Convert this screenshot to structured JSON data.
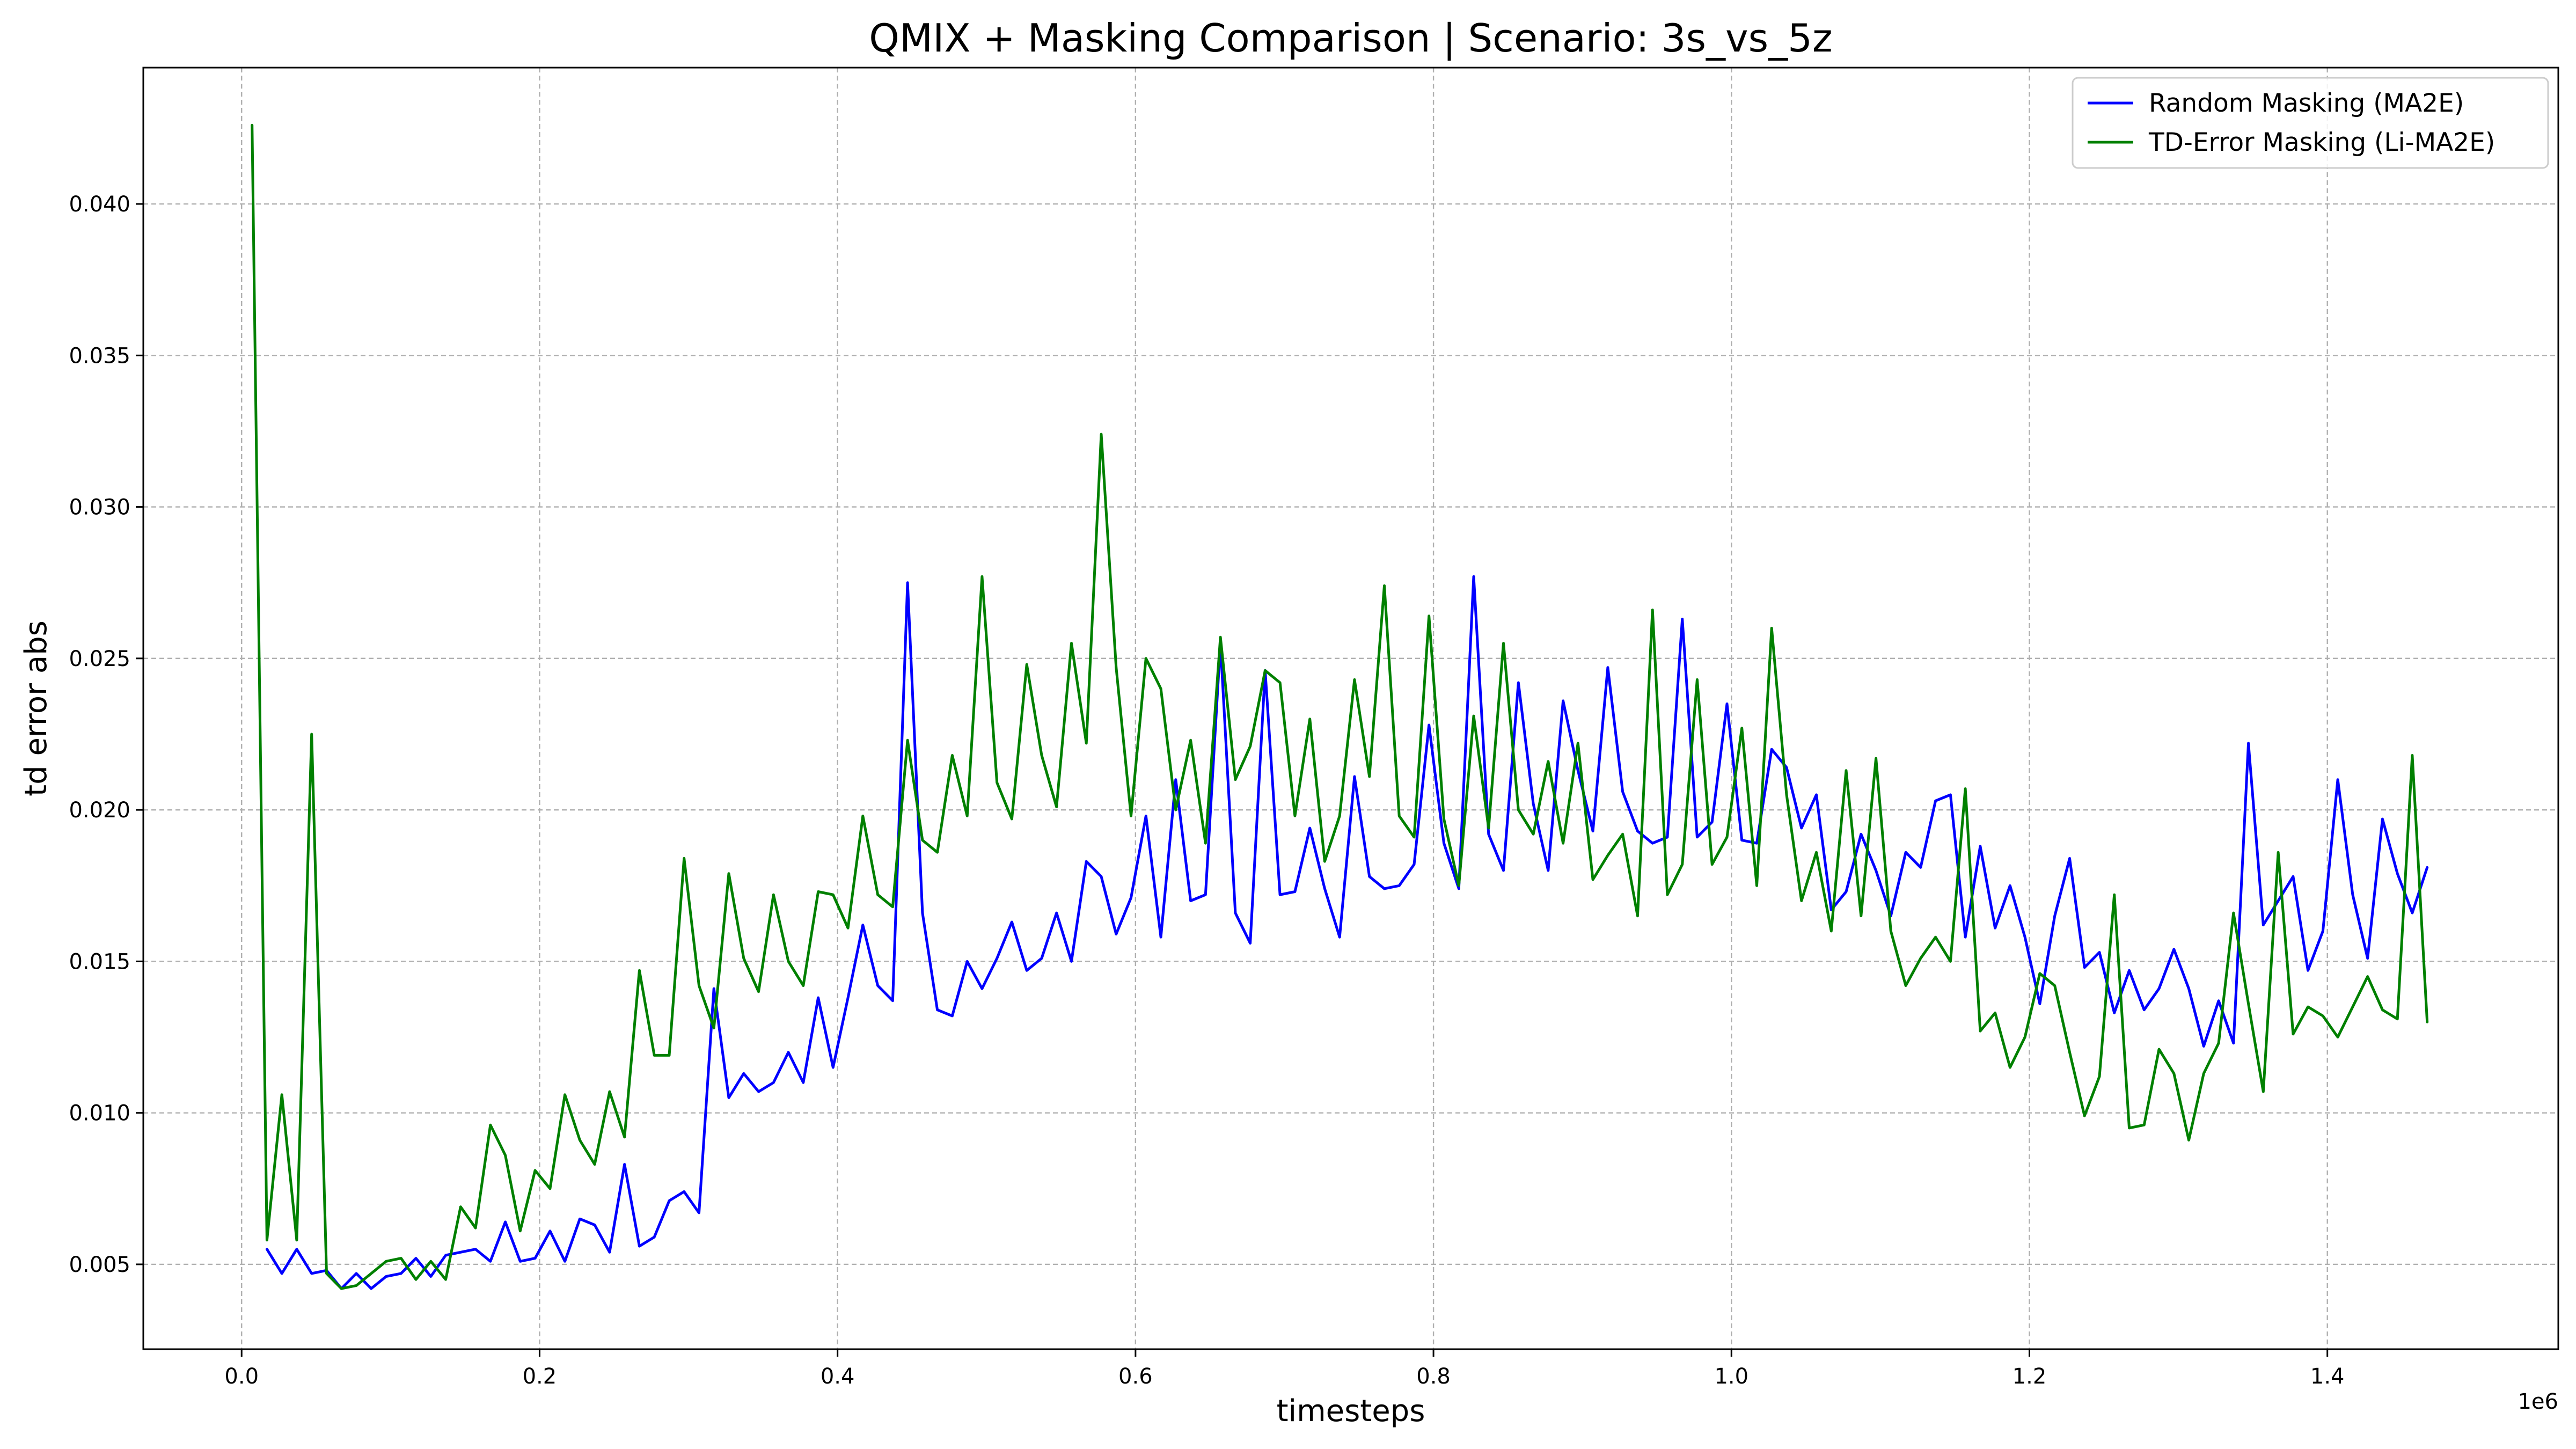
{
  "chart_data": {
    "type": "line",
    "title": "QMIX + Masking Comparison | Scenario: 3s_vs_5z",
    "xlabel": "timesteps",
    "ylabel": "td error abs",
    "x_offset_label": "1e6",
    "xlim": [
      -0.066,
      1.555
    ],
    "ylim": [
      0.0022,
      0.0445
    ],
    "x_ticks": [
      0.0,
      0.2,
      0.4,
      0.6,
      0.8,
      1.0,
      1.2,
      1.4
    ],
    "x_tick_labels": [
      "0.0",
      "0.2",
      "0.4",
      "0.6",
      "0.8",
      "1.0",
      "1.2",
      "1.4"
    ],
    "y_ticks": [
      0.005,
      0.01,
      0.015,
      0.02,
      0.025,
      0.03,
      0.035,
      0.04
    ],
    "y_tick_labels": [
      "0.005",
      "0.010",
      "0.015",
      "0.020",
      "0.025",
      "0.030",
      "0.035",
      "0.040"
    ],
    "grid": true,
    "legend_position": "top-right",
    "x_start": 0.015,
    "x_step": 0.01,
    "series": [
      {
        "name": "Random Masking (MA2E)",
        "color": "#0000ff",
        "x_start": 0.017,
        "values": [
          0.0055,
          0.0047,
          0.0055,
          0.0047,
          0.0048,
          0.0042,
          0.0047,
          0.0042,
          0.0046,
          0.0047,
          0.0052,
          0.0046,
          0.0053,
          0.0054,
          0.0055,
          0.0051,
          0.0064,
          0.0051,
          0.0052,
          0.0061,
          0.0051,
          0.0065,
          0.0063,
          0.0054,
          0.0083,
          0.0056,
          0.0059,
          0.0071,
          0.0074,
          0.0067,
          0.0141,
          0.0105,
          0.0113,
          0.0107,
          0.011,
          0.012,
          0.011,
          0.0138,
          0.0115,
          0.0138,
          0.0162,
          0.0142,
          0.0137,
          0.0275,
          0.0166,
          0.0134,
          0.0132,
          0.015,
          0.0141,
          0.0151,
          0.0163,
          0.0147,
          0.0151,
          0.0166,
          0.015,
          0.0183,
          0.0178,
          0.0159,
          0.0171,
          0.0198,
          0.0158,
          0.021,
          0.017,
          0.0172,
          0.0255,
          0.0166,
          0.0156,
          0.0246,
          0.0172,
          0.0173,
          0.0194,
          0.0174,
          0.0158,
          0.0211,
          0.0178,
          0.0174,
          0.0175,
          0.0182,
          0.0228,
          0.0189,
          0.0174,
          0.0277,
          0.0192,
          0.018,
          0.0242,
          0.0202,
          0.018,
          0.0236,
          0.0213,
          0.0193,
          0.0247,
          0.0206,
          0.0193,
          0.0189,
          0.0191,
          0.0263,
          0.0191,
          0.0196,
          0.0235,
          0.019,
          0.0189,
          0.022,
          0.0214,
          0.0194,
          0.0205,
          0.0167,
          0.0173,
          0.0192,
          0.018,
          0.0165,
          0.0186,
          0.0181,
          0.0203,
          0.0205,
          0.0158,
          0.0188,
          0.0161,
          0.0175,
          0.0158,
          0.0136,
          0.0165,
          0.0184,
          0.0148,
          0.0153,
          0.0133,
          0.0147,
          0.0134,
          0.0141,
          0.0154,
          0.0141,
          0.0122,
          0.0137,
          0.0123,
          0.0222,
          0.0162,
          0.017,
          0.0178,
          0.0147,
          0.016,
          0.021,
          0.0172,
          0.0151,
          0.0197,
          0.0179,
          0.0166,
          0.0181
        ]
      },
      {
        "name": "TD-Error Masking (Li-MA2E)",
        "color": "#008000",
        "x_start": 0.007,
        "values": [
          0.0426,
          0.0058,
          0.0106,
          0.0058,
          0.0225,
          0.0047,
          0.0042,
          0.0043,
          0.0047,
          0.0051,
          0.0052,
          0.0045,
          0.0051,
          0.0045,
          0.0069,
          0.0062,
          0.0096,
          0.0086,
          0.0061,
          0.0081,
          0.0075,
          0.0106,
          0.0091,
          0.0083,
          0.0107,
          0.0092,
          0.0147,
          0.0119,
          0.0119,
          0.0184,
          0.0142,
          0.0128,
          0.0179,
          0.0151,
          0.014,
          0.0172,
          0.015,
          0.0142,
          0.0173,
          0.0172,
          0.0161,
          0.0198,
          0.0172,
          0.0168,
          0.0223,
          0.019,
          0.0186,
          0.0218,
          0.0198,
          0.0277,
          0.0209,
          0.0197,
          0.0248,
          0.0218,
          0.0201,
          0.0255,
          0.0222,
          0.0324,
          0.0247,
          0.0198,
          0.025,
          0.024,
          0.02,
          0.0223,
          0.0189,
          0.0257,
          0.021,
          0.0221,
          0.0246,
          0.0242,
          0.0198,
          0.023,
          0.0183,
          0.0198,
          0.0243,
          0.0211,
          0.0274,
          0.0198,
          0.0191,
          0.0264,
          0.0197,
          0.0175,
          0.0231,
          0.0194,
          0.0255,
          0.02,
          0.0192,
          0.0216,
          0.0189,
          0.0222,
          0.0177,
          0.0185,
          0.0192,
          0.0165,
          0.0266,
          0.0172,
          0.0182,
          0.0243,
          0.0182,
          0.0191,
          0.0227,
          0.0175,
          0.026,
          0.0205,
          0.017,
          0.0186,
          0.016,
          0.0213,
          0.0165,
          0.0217,
          0.016,
          0.0142,
          0.0151,
          0.0158,
          0.015,
          0.0207,
          0.0127,
          0.0133,
          0.0115,
          0.0125,
          0.0146,
          0.0142,
          0.012,
          0.0099,
          0.0112,
          0.0172,
          0.0095,
          0.0096,
          0.0121,
          0.0113,
          0.0091,
          0.0113,
          0.0123,
          0.0166,
          0.0136,
          0.0107,
          0.0186,
          0.0126,
          0.0135,
          0.0132,
          0.0125,
          0.0135,
          0.0145,
          0.0134,
          0.0131,
          0.0218,
          0.013
        ]
      }
    ]
  }
}
